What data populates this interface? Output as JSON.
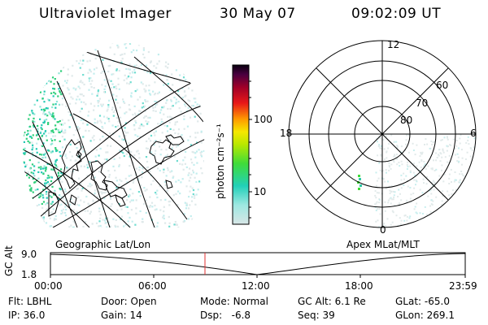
{
  "header": {
    "instrument": "Ultraviolet Imager",
    "date": "30 May 07",
    "time": "09:02:09 UT"
  },
  "colorbar": {
    "unit_label": "photon cm⁻²s⁻¹",
    "ticks": [
      "100",
      "10"
    ]
  },
  "map_labels": {
    "left_caption": "Geographic Lat/Lon",
    "right_caption": "Apex  MLat/MLT"
  },
  "polar": {
    "mlt_labels": {
      "top": "12",
      "left": "18",
      "right": "6",
      "bottom": "0"
    },
    "lat_labels": [
      "60",
      "70",
      "80"
    ]
  },
  "timeline": {
    "axis_label": "GC Alt",
    "y_ticks": [
      "9.0",
      "1.8"
    ],
    "x_ticks": [
      "00:00",
      "06:00",
      "12:00",
      "18:00",
      "23:59"
    ],
    "marker_color": "#e03030"
  },
  "status": {
    "row1": [
      {
        "label": "Flt:",
        "value": "LBHL"
      },
      {
        "label": "Door:",
        "value": "Open"
      },
      {
        "label": "Mode:",
        "value": "Normal"
      },
      {
        "label": "GC Alt:",
        "value": "6.1 Re"
      },
      {
        "label": "GLat:",
        "value": "-65.0"
      }
    ],
    "row2": [
      {
        "label": "IP:",
        "value": "36.0"
      },
      {
        "label": "Gain:",
        "value": "14"
      },
      {
        "label": "Dsp:",
        "value": "  -6.8"
      },
      {
        "label": "Seq:",
        "value": "39"
      },
      {
        "label": "GLon:",
        "value": "269.1"
      }
    ]
  }
}
